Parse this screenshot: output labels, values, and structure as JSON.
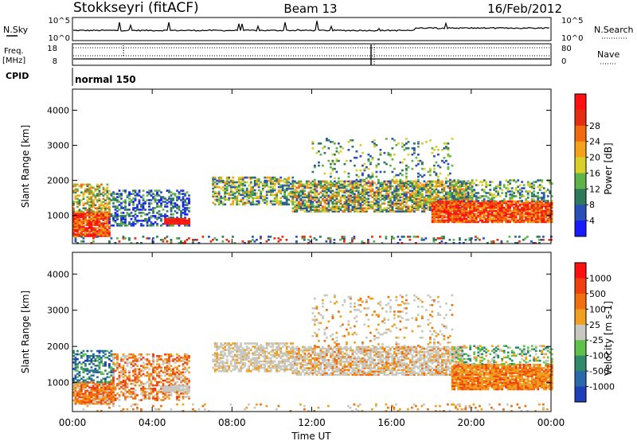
{
  "header": {
    "station": "Stokkseyri (fitACF)",
    "beam": "Beam 13",
    "date": "16/Feb/2012"
  },
  "top_panels": {
    "nsky_label": "N.Sky",
    "nsearch_label": "N.Search",
    "nsky_ticks": [
      "10^5",
      "10^0"
    ],
    "nsearch_ticks": [
      "10^5",
      "10^0"
    ],
    "freq_label_1": "Freq.",
    "freq_label_2": "[MHz]",
    "freq_ticks": [
      "18",
      "8"
    ],
    "nave_label": "Nave",
    "nave_ticks": [
      "80",
      "0"
    ],
    "cpid_label": "CPID",
    "cpid_value": "normal 150"
  },
  "chart_data": [
    {
      "type": "heatmap",
      "name": "power",
      "xlabel": "Time UT",
      "ylabel": "Slant Range [km]",
      "x_ticks": [
        "00:00",
        "04:00",
        "08:00",
        "12:00",
        "16:00",
        "20:00",
        "00:00"
      ],
      "xlim_hours": [
        0,
        24
      ],
      "y_ticks": [
        1000,
        2000,
        3000,
        4000
      ],
      "ylim": [
        200,
        4600
      ],
      "colorbar_label": "Power [dB]",
      "colorbar_ticks": [
        "4",
        "8",
        "12",
        "16",
        "20",
        "24",
        "28"
      ],
      "colors": [
        "#1a1aff",
        "#2a4fb8",
        "#2f7a5a",
        "#5fb34a",
        "#d8cf2a",
        "#f3a21a",
        "#f06a10",
        "#e52d12",
        "#ff1010"
      ]
    },
    {
      "type": "heatmap",
      "name": "velocity",
      "xlabel": "Time UT",
      "ylabel": "Slant Range [km]",
      "x_ticks": [
        "00:00",
        "04:00",
        "08:00",
        "12:00",
        "16:00",
        "20:00",
        "00:00"
      ],
      "xlim_hours": [
        0,
        24
      ],
      "y_ticks": [
        1000,
        2000,
        3000,
        4000
      ],
      "ylim": [
        200,
        4600
      ],
      "colorbar_label": "Velocity [m s-1]",
      "colorbar_ticks": [
        "1000",
        "500",
        "100",
        "25",
        "-25",
        "-100",
        "-500",
        "-1000"
      ],
      "colors": [
        "#1f3fb8",
        "#2b6aa8",
        "#2e8a6a",
        "#5ec24a",
        "#c8c8c0",
        "#f0a020",
        "#f07010",
        "#f04010",
        "#ff1010"
      ]
    }
  ]
}
